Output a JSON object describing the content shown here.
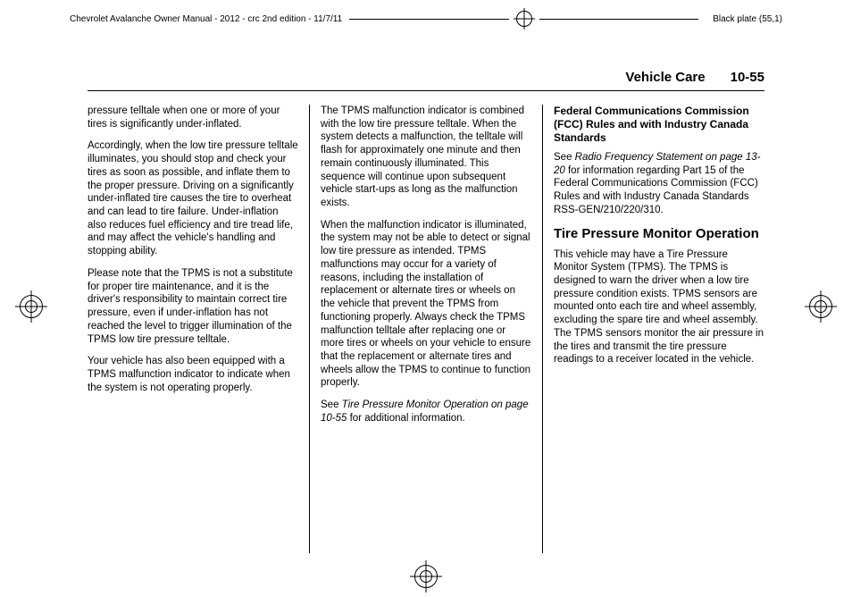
{
  "cropmark": {
    "left": "Chevrolet Avalanche Owner Manual - 2012 - crc 2nd edition - 11/7/11",
    "right": "Black plate (55,1)"
  },
  "header": {
    "section": "Vehicle Care",
    "pagenum": "10-55"
  },
  "col1": {
    "p1": "pressure telltale when one or more of your tires is significantly under-inflated.",
    "p2": "Accordingly, when the low tire pressure telltale illuminates, you should stop and check your tires as soon as possible, and inflate them to the proper pressure. Driving on a significantly under-inflated tire causes the tire to overheat and can lead to tire failure. Under-inflation also reduces fuel efficiency and tire tread life, and may affect the vehicle's handling and stopping ability.",
    "p3": "Please note that the TPMS is not a substitute for proper tire maintenance, and it is the driver's responsibility to maintain correct tire pressure, even if under-inflation has not reached the level to trigger illumination of the TPMS low tire pressure telltale.",
    "p4": "Your vehicle has also been equipped with a TPMS malfunction indicator to indicate when the system is not operating properly."
  },
  "col2": {
    "p1": "The TPMS malfunction indicator is combined with the low tire pressure telltale. When the system detects a malfunction, the telltale will flash for approximately one minute and then remain continuously illuminated. This sequence will continue upon subsequent vehicle start-ups as long as the malfunction exists.",
    "p2": "When the malfunction indicator is illuminated, the system may not be able to detect or signal low tire pressure as intended. TPMS malfunctions may occur for a variety of reasons, including the installation of replacement or alternate tires or wheels on the vehicle that prevent the TPMS from functioning properly. Always check the TPMS malfunction telltale after replacing one or more tires or wheels on your vehicle to ensure that the replacement or alternate tires and wheels allow the TPMS to continue to function properly.",
    "p3a": "See ",
    "p3b": "Tire Pressure Monitor Operation on page 10-55",
    "p3c": " for additional information."
  },
  "col3": {
    "h3": "Federal Communications Commission (FCC) Rules and with Industry Canada Standards",
    "p1a": "See ",
    "p1b": "Radio Frequency Statement on page 13-20",
    "p1c": " for information regarding Part 15 of the Federal Communications Commission (FCC) Rules and with Industry Canada Standards RSS-GEN/210/220/310.",
    "h2": "Tire Pressure Monitor Operation",
    "p2": "This vehicle may have a Tire Pressure Monitor System (TPMS). The TPMS is designed to warn the driver when a low tire pressure condition exists. TPMS sensors are mounted onto each tire and wheel assembly, excluding the spare tire and wheel assembly. The TPMS sensors monitor the air pressure in the tires and transmit the tire pressure readings to a receiver located in the vehicle."
  }
}
